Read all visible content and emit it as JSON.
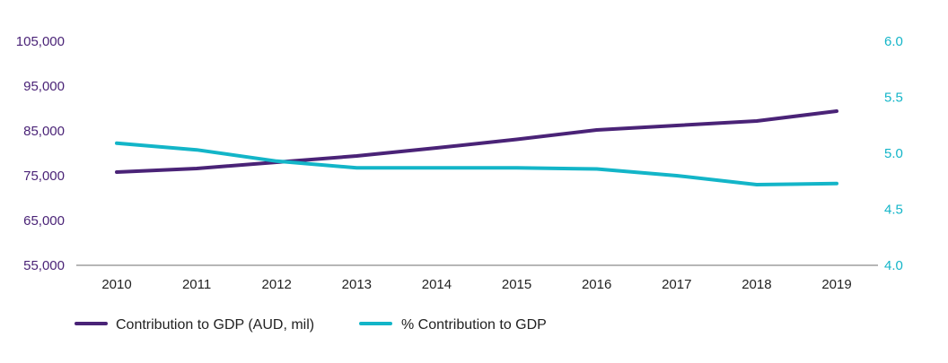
{
  "colors": {
    "primary": "#4a2377",
    "secondary": "#13b5c8",
    "axis": "#8a8a8a",
    "text": "#222222"
  },
  "chart_data": {
    "type": "line",
    "title": "",
    "xlabel": "",
    "x": [
      "2010",
      "2011",
      "2012",
      "2013",
      "2014",
      "2015",
      "2016",
      "2017",
      "2018",
      "2019"
    ],
    "y_left": {
      "ylim": [
        55000,
        105000
      ],
      "ticks": [
        "55,000",
        "65,000",
        "75,000",
        "85,000",
        "95,000",
        "105,000"
      ],
      "tick_values": [
        55000,
        65000,
        75000,
        85000,
        95000,
        105000
      ]
    },
    "y_right": {
      "ylim": [
        4.0,
        6.0
      ],
      "ticks": [
        "4.0",
        "4.5",
        "5.0",
        "5.5",
        "6.0"
      ],
      "tick_values": [
        4.0,
        4.5,
        5.0,
        5.5,
        6.0
      ]
    },
    "series": [
      {
        "name": "Contribution to GDP (AUD, mil)",
        "axis": "left",
        "color": "#4a2377",
        "values": [
          75800,
          76600,
          78000,
          79400,
          81200,
          83100,
          85200,
          86200,
          87200,
          89400
        ]
      },
      {
        "name": "% Contribution to GDP",
        "axis": "right",
        "color": "#13b5c8",
        "values": [
          5.09,
          5.03,
          4.93,
          4.87,
          4.87,
          4.87,
          4.86,
          4.8,
          4.72,
          4.73
        ]
      }
    ],
    "legend": "bottom-left",
    "grid": false
  }
}
